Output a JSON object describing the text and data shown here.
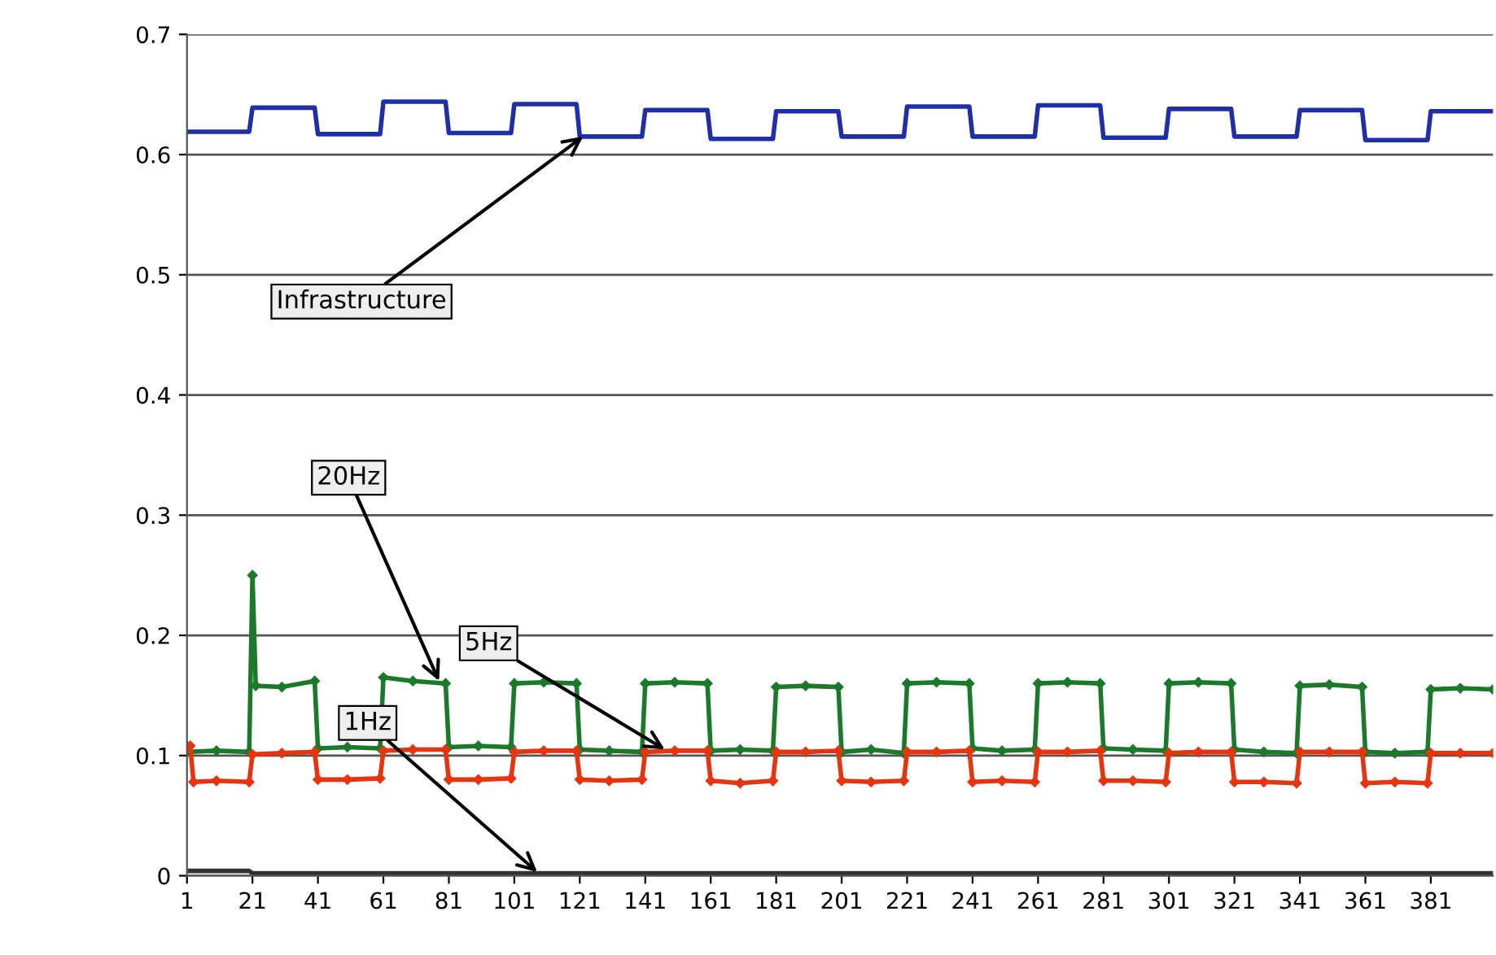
{
  "chart_data": {
    "type": "line",
    "xlim": [
      1,
      400
    ],
    "xticks": [
      1,
      21,
      41,
      61,
      81,
      101,
      121,
      141,
      161,
      181,
      201,
      221,
      241,
      261,
      281,
      301,
      321,
      341,
      361,
      381
    ],
    "ylim": [
      0,
      0.7
    ],
    "yticks": [
      0,
      0.1,
      0.2,
      0.3,
      0.4,
      0.5,
      0.6,
      0.7
    ],
    "grid": "y",
    "series": [
      {
        "color": "#1f2fa8",
        "x": [
          1,
          10,
          20,
          21,
          30,
          40,
          41,
          50,
          60,
          61,
          70,
          80,
          81,
          90,
          100,
          101,
          110,
          120,
          121,
          130,
          140,
          141,
          150,
          160,
          161,
          170,
          180,
          181,
          190,
          200,
          201,
          210,
          220,
          221,
          230,
          240,
          241,
          250,
          260,
          261,
          270,
          280,
          281,
          290,
          300,
          301,
          310,
          320,
          321,
          330,
          340,
          341,
          350,
          360,
          361,
          370,
          380,
          381,
          390,
          400
        ],
        "values": [
          0.619,
          0.619,
          0.619,
          0.639,
          0.639,
          0.639,
          0.617,
          0.617,
          0.617,
          0.644,
          0.644,
          0.644,
          0.618,
          0.618,
          0.618,
          0.642,
          0.642,
          0.642,
          0.615,
          0.615,
          0.615,
          0.637,
          0.637,
          0.637,
          0.613,
          0.613,
          0.613,
          0.636,
          0.636,
          0.636,
          0.615,
          0.615,
          0.615,
          0.64,
          0.64,
          0.64,
          0.615,
          0.615,
          0.615,
          0.641,
          0.641,
          0.641,
          0.614,
          0.614,
          0.614,
          0.638,
          0.638,
          0.638,
          0.615,
          0.615,
          0.615,
          0.637,
          0.637,
          0.637,
          0.612,
          0.612,
          0.612,
          0.636,
          0.636,
          0.636
        ]
      },
      {
        "color": "#1a7a2a",
        "marker": "diamond",
        "x": [
          1,
          10,
          20,
          21,
          22,
          30,
          40,
          41,
          50,
          60,
          61,
          70,
          80,
          81,
          90,
          100,
          101,
          110,
          120,
          121,
          130,
          140,
          141,
          150,
          160,
          161,
          170,
          180,
          181,
          190,
          200,
          201,
          210,
          220,
          221,
          230,
          240,
          241,
          250,
          260,
          261,
          270,
          280,
          281,
          290,
          300,
          301,
          310,
          320,
          321,
          330,
          340,
          341,
          350,
          360,
          361,
          370,
          380,
          381,
          390,
          400
        ],
        "values": [
          0.103,
          0.104,
          0.103,
          0.25,
          0.158,
          0.157,
          0.162,
          0.106,
          0.107,
          0.106,
          0.165,
          0.162,
          0.16,
          0.107,
          0.108,
          0.107,
          0.16,
          0.161,
          0.16,
          0.105,
          0.104,
          0.103,
          0.16,
          0.161,
          0.16,
          0.104,
          0.105,
          0.104,
          0.157,
          0.158,
          0.157,
          0.103,
          0.105,
          0.102,
          0.16,
          0.161,
          0.16,
          0.106,
          0.104,
          0.105,
          0.16,
          0.161,
          0.16,
          0.106,
          0.105,
          0.104,
          0.16,
          0.161,
          0.16,
          0.105,
          0.103,
          0.102,
          0.158,
          0.159,
          0.157,
          0.103,
          0.102,
          0.103,
          0.155,
          0.156,
          0.155
        ]
      },
      {
        "color": "#e8340e",
        "marker": "diamond",
        "x": [
          1,
          2,
          3,
          10,
          20,
          21,
          30,
          40,
          41,
          50,
          60,
          61,
          70,
          80,
          81,
          90,
          100,
          101,
          110,
          120,
          121,
          130,
          140,
          141,
          150,
          160,
          161,
          170,
          180,
          181,
          190,
          200,
          201,
          210,
          220,
          221,
          230,
          240,
          241,
          250,
          260,
          261,
          270,
          280,
          281,
          290,
          300,
          301,
          310,
          320,
          321,
          330,
          340,
          341,
          350,
          360,
          361,
          370,
          380,
          381,
          390,
          400
        ],
        "values": [
          0.108,
          0.108,
          0.078,
          0.079,
          0.078,
          0.101,
          0.102,
          0.103,
          0.08,
          0.08,
          0.081,
          0.104,
          0.105,
          0.105,
          0.08,
          0.08,
          0.081,
          0.103,
          0.104,
          0.104,
          0.08,
          0.079,
          0.08,
          0.103,
          0.104,
          0.104,
          0.079,
          0.077,
          0.079,
          0.103,
          0.103,
          0.104,
          0.079,
          0.078,
          0.079,
          0.103,
          0.103,
          0.104,
          0.078,
          0.079,
          0.078,
          0.103,
          0.103,
          0.104,
          0.079,
          0.079,
          0.078,
          0.102,
          0.103,
          0.103,
          0.078,
          0.078,
          0.077,
          0.103,
          0.103,
          0.103,
          0.077,
          0.078,
          0.077,
          0.102,
          0.102,
          0.102
        ]
      },
      {
        "color": "#333333",
        "x": [
          1,
          20,
          21,
          400
        ],
        "values": [
          0.004,
          0.004,
          0.002,
          0.002
        ]
      }
    ],
    "annotations": [
      {
        "text": "Infrastructure",
        "x": 122,
        "y": 0.615
      },
      {
        "text": "20Hz",
        "x": 78,
        "y": 0.162
      },
      {
        "text": "5Hz",
        "x": 147,
        "y": 0.105
      },
      {
        "text": "1Hz",
        "x": 108,
        "y": 0.003
      }
    ]
  }
}
